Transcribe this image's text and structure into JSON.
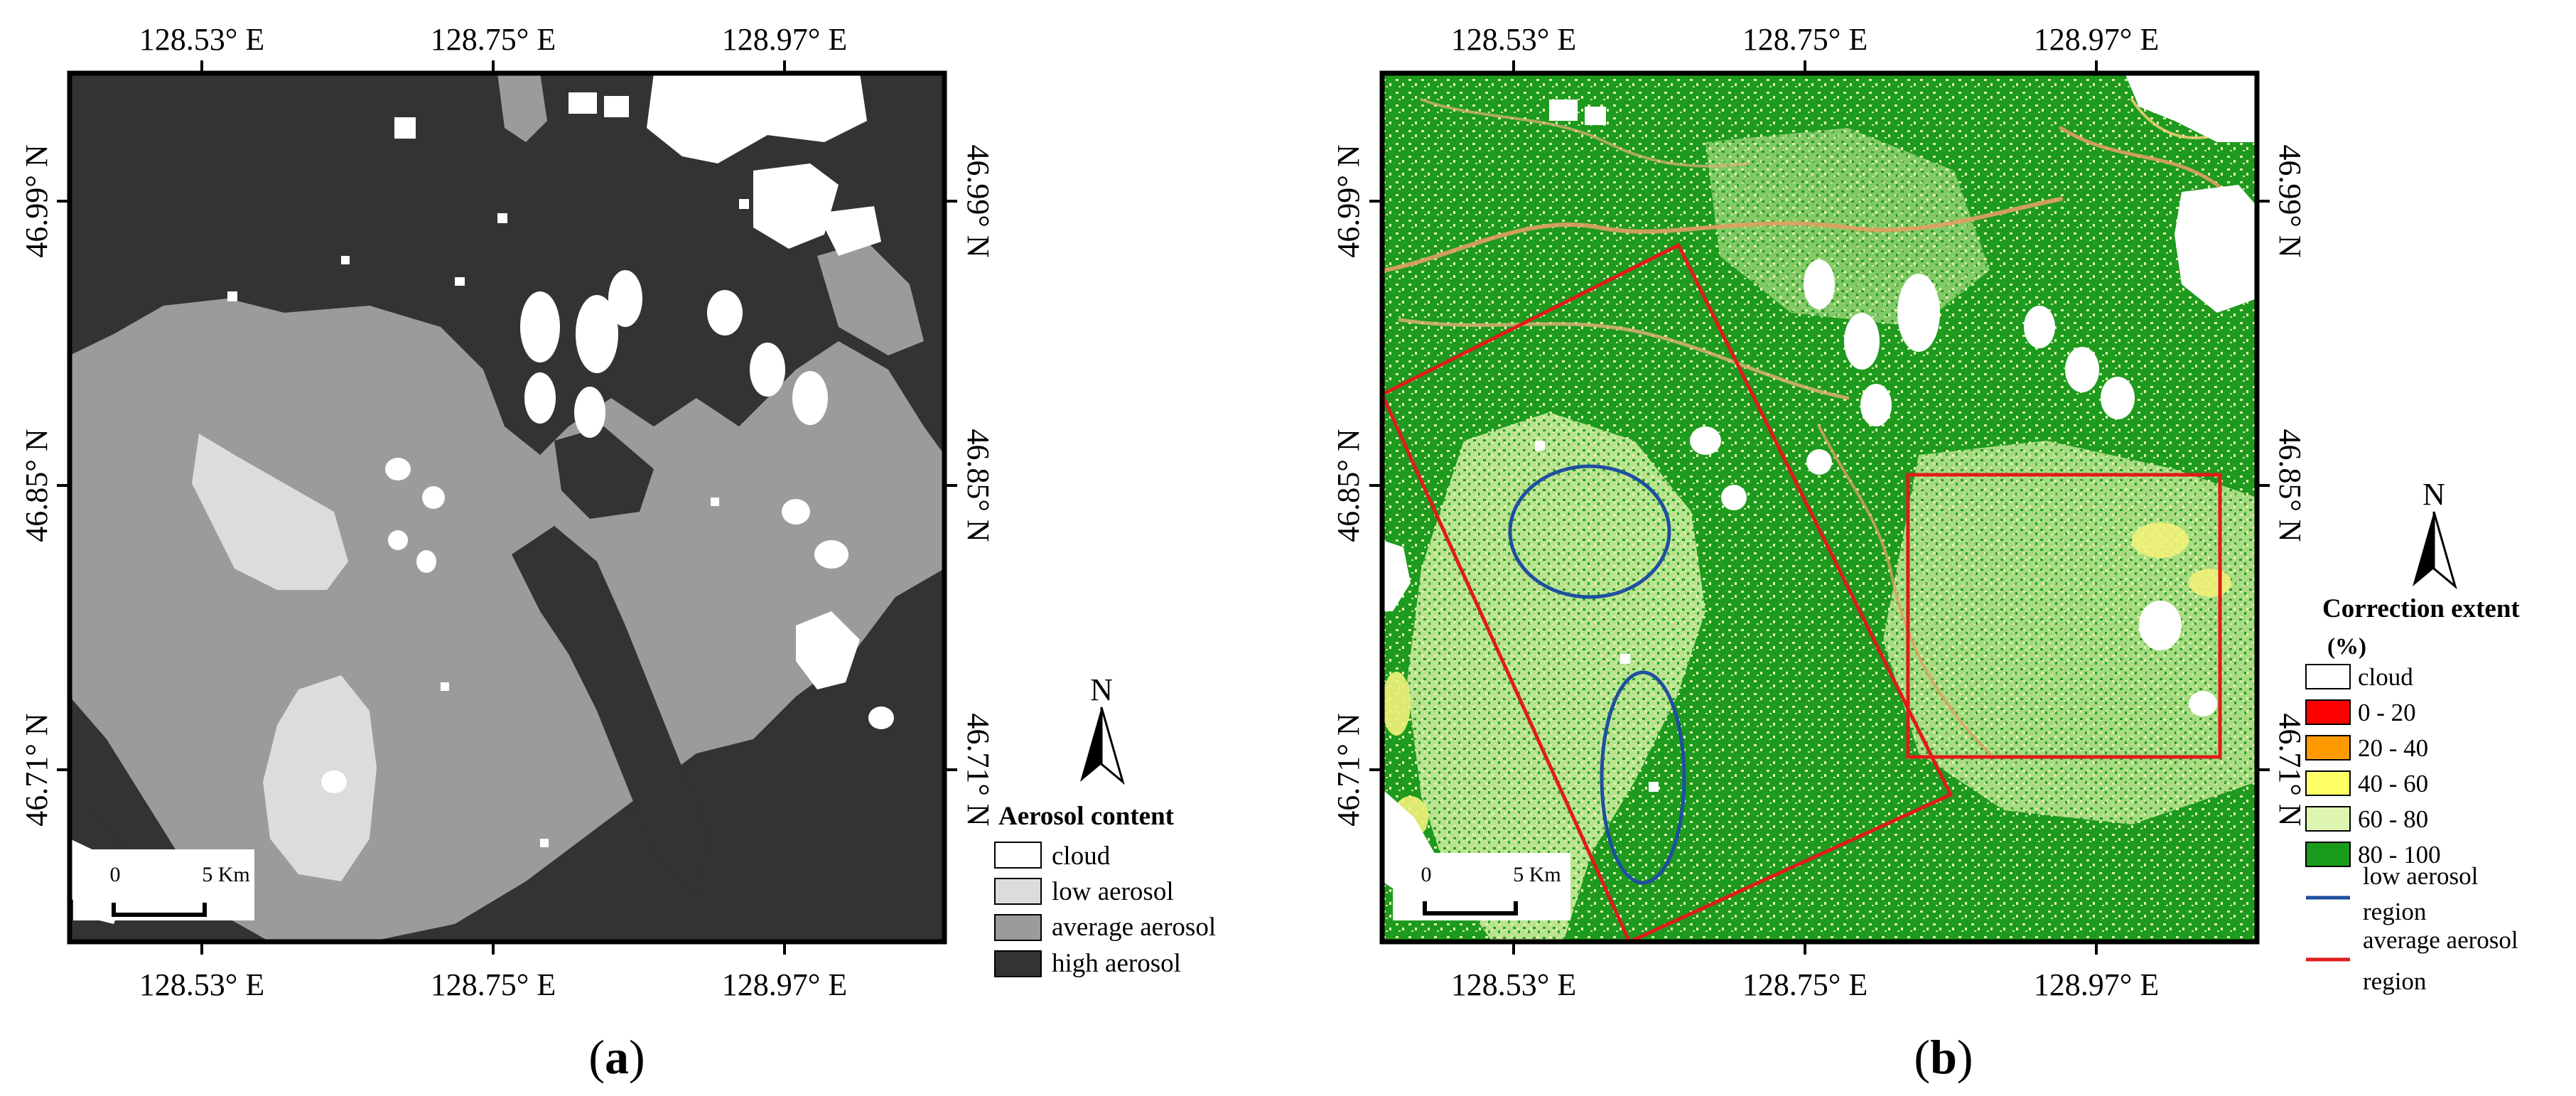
{
  "panel_a": {
    "caption_open": "(",
    "caption_letter": "a",
    "caption_close": ")",
    "top_ticks": [
      "128.53° E",
      "128.75° E",
      "128.97° E"
    ],
    "bottom_ticks": [
      "128.53° E",
      "128.75° E",
      "128.97° E"
    ],
    "left_ticks": [
      "46.99° N",
      "46.85° N",
      "46.71° N"
    ],
    "right_ticks": [
      "46.99° N",
      "46.85° N",
      "46.71° N"
    ],
    "north": "N",
    "scale": {
      "start": "0",
      "end": "5 Km"
    },
    "legend": {
      "title": "Aerosol content",
      "items": [
        {
          "label": "cloud",
          "color": "#ffffff"
        },
        {
          "label": "low aerosol",
          "color": "#dcdcdc"
        },
        {
          "label": "average aerosol",
          "color": "#9b9b9b"
        },
        {
          "label": "high aerosol",
          "color": "#333333"
        }
      ]
    }
  },
  "panel_b": {
    "caption_open": "(",
    "caption_letter": "b",
    "caption_close": ")",
    "top_ticks": [
      "128.53° E",
      "128.75° E",
      "128.97° E"
    ],
    "bottom_ticks": [
      "128.53° E",
      "128.75° E",
      "128.97° E"
    ],
    "left_ticks": [
      "46.99° N",
      "46.85° N",
      "46.71° N"
    ],
    "right_ticks": [
      "46.99° N",
      "46.85° N",
      "46.71° N"
    ],
    "north": "N",
    "scale": {
      "start": "0",
      "end": "5 Km"
    },
    "legend": {
      "title": "Correction extent",
      "unit": "(%)",
      "items": [
        {
          "label": "cloud",
          "color": "#ffffff"
        },
        {
          "label": "0 - 20",
          "color": "#ff0000"
        },
        {
          "label": "20 - 40",
          "color": "#ff9900"
        },
        {
          "label": "40 - 60",
          "color": "#ffff66"
        },
        {
          "label": "60 - 80",
          "color": "#ddf5b0"
        },
        {
          "label": "80 - 100",
          "color": "#1a9a1a"
        }
      ],
      "lines": [
        {
          "label_line1": "low aerosol",
          "label_line2": "region",
          "color": "#1f4fa0"
        },
        {
          "label_line1": "average aerosol",
          "label_line2": "region",
          "color": "#e01b1b"
        }
      ]
    }
  }
}
